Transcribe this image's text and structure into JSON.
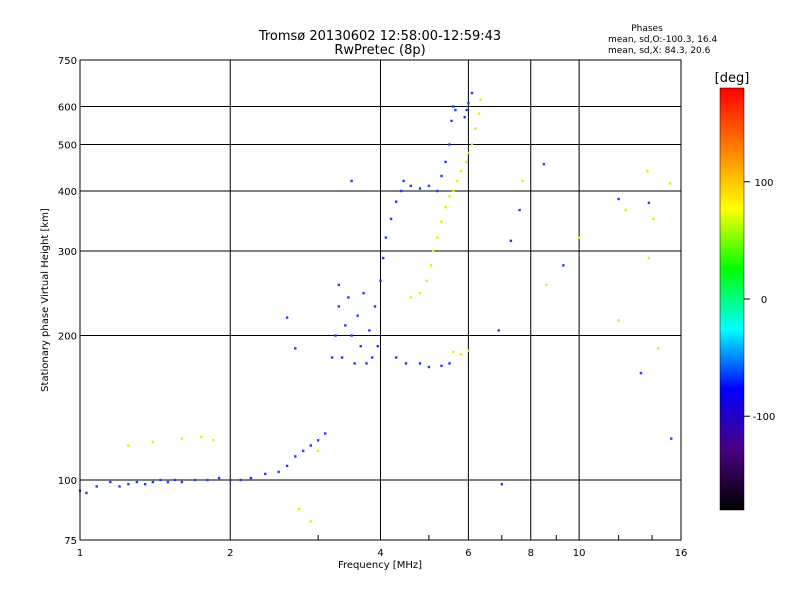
{
  "chart_data": {
    "type": "scatter",
    "title": "Tromsø 20130602 12:58:00-12:59:43",
    "subtitle": "RwPretec (8p)",
    "phases": {
      "heading": "Phases",
      "line_o": "mean, sd,O:-100.3, 16.4",
      "line_x": "mean, sd,X:  84.3, 20.6"
    },
    "xlabel": "Frequency [MHz]",
    "ylabel": "Stationary phase Virtual Height [km]",
    "xscale": "log",
    "yscale": "log",
    "xlim": [
      1,
      16
    ],
    "ylim": [
      75,
      750
    ],
    "x_ticks": [
      1,
      2,
      4,
      6,
      8,
      10,
      16
    ],
    "x_tick_labels": [
      "1",
      "2",
      "4",
      "6",
      "8",
      "10",
      "16"
    ],
    "y_ticks": [
      75,
      100,
      200,
      300,
      400,
      500,
      600,
      750
    ],
    "y_tick_labels": [
      "75",
      "100",
      "200",
      "300",
      "400",
      "500",
      "600",
      "750"
    ],
    "grid": true,
    "colorbar": {
      "label": "deg",
      "range": [
        -180,
        180
      ],
      "ticks": [
        100,
        0,
        -100
      ],
      "tick_labels": [
        "100",
        "0",
        "-100"
      ],
      "colors": [
        "#000000",
        "#4b0082",
        "#0000ff",
        "#00ffff",
        "#00ff00",
        "#ffff00",
        "#ff8000",
        "#ff0000"
      ]
    },
    "series": [
      {
        "polarization": "O",
        "phase_deg": -100,
        "color": "#1e3cff",
        "points": [
          [
            1.0,
            95
          ],
          [
            1.03,
            94
          ],
          [
            1.08,
            97
          ],
          [
            1.15,
            99
          ],
          [
            1.2,
            97
          ],
          [
            1.25,
            98
          ],
          [
            1.3,
            99
          ],
          [
            1.35,
            98
          ],
          [
            1.4,
            99
          ],
          [
            1.45,
            100
          ],
          [
            1.5,
            99
          ],
          [
            1.55,
            100
          ],
          [
            1.6,
            99
          ],
          [
            1.7,
            100
          ],
          [
            1.8,
            100
          ],
          [
            1.9,
            101
          ],
          [
            2.0,
            100
          ],
          [
            2.1,
            100
          ],
          [
            2.2,
            101
          ],
          [
            2.35,
            103
          ],
          [
            2.5,
            104
          ],
          [
            2.6,
            107
          ],
          [
            2.7,
            112
          ],
          [
            2.8,
            115
          ],
          [
            2.9,
            118
          ],
          [
            3.0,
            121
          ],
          [
            3.1,
            125
          ],
          [
            2.6,
            218
          ],
          [
            2.7,
            188
          ],
          [
            3.2,
            180
          ],
          [
            3.25,
            200
          ],
          [
            3.3,
            230
          ],
          [
            3.3,
            255
          ],
          [
            3.35,
            180
          ],
          [
            3.4,
            210
          ],
          [
            3.45,
            240
          ],
          [
            3.5,
            200
          ],
          [
            3.55,
            175
          ],
          [
            3.6,
            220
          ],
          [
            3.65,
            190
          ],
          [
            3.7,
            245
          ],
          [
            3.75,
            175
          ],
          [
            3.8,
            205
          ],
          [
            3.85,
            180
          ],
          [
            3.9,
            230
          ],
          [
            3.95,
            190
          ],
          [
            4.0,
            260
          ],
          [
            4.05,
            290
          ],
          [
            4.1,
            320
          ],
          [
            4.2,
            350
          ],
          [
            4.3,
            380
          ],
          [
            4.4,
            400
          ],
          [
            4.45,
            420
          ],
          [
            4.3,
            180
          ],
          [
            4.5,
            175
          ],
          [
            4.8,
            175
          ],
          [
            5.0,
            172
          ],
          [
            5.3,
            173
          ],
          [
            5.5,
            175
          ],
          [
            4.6,
            410
          ],
          [
            4.8,
            405
          ],
          [
            5.0,
            410
          ],
          [
            5.2,
            400
          ],
          [
            5.3,
            430
          ],
          [
            5.4,
            460
          ],
          [
            5.5,
            500
          ],
          [
            5.55,
            560
          ],
          [
            5.6,
            600
          ],
          [
            5.65,
            590
          ],
          [
            5.9,
            570
          ],
          [
            5.95,
            590
          ],
          [
            6.0,
            610
          ],
          [
            6.1,
            640
          ],
          [
            6.9,
            205
          ],
          [
            7.3,
            315
          ],
          [
            7.0,
            98
          ],
          [
            8.5,
            455
          ],
          [
            7.6,
            365
          ],
          [
            12.0,
            385
          ],
          [
            13.8,
            378
          ],
          [
            15.3,
            122
          ],
          [
            13.3,
            167
          ],
          [
            9.3,
            280
          ],
          [
            3.5,
            420
          ]
        ]
      },
      {
        "polarization": "X",
        "phase_deg": 90,
        "color": "#e6f000",
        "points": [
          [
            1.25,
            118
          ],
          [
            1.4,
            120
          ],
          [
            1.6,
            122
          ],
          [
            1.75,
            123
          ],
          [
            1.85,
            121
          ],
          [
            2.75,
            87
          ],
          [
            2.9,
            82
          ],
          [
            3.0,
            115
          ],
          [
            4.6,
            240
          ],
          [
            4.8,
            245
          ],
          [
            4.95,
            260
          ],
          [
            5.05,
            280
          ],
          [
            5.1,
            300
          ],
          [
            5.2,
            320
          ],
          [
            5.3,
            345
          ],
          [
            5.4,
            370
          ],
          [
            5.5,
            390
          ],
          [
            5.6,
            400
          ],
          [
            5.7,
            420
          ],
          [
            5.8,
            440
          ],
          [
            5.95,
            460
          ],
          [
            6.0,
            480
          ],
          [
            6.1,
            500
          ],
          [
            6.2,
            540
          ],
          [
            6.3,
            580
          ],
          [
            6.35,
            620
          ],
          [
            5.6,
            185
          ],
          [
            5.8,
            183
          ],
          [
            6.0,
            186
          ],
          [
            7.7,
            420
          ],
          [
            8.6,
            255
          ],
          [
            10.0,
            320
          ],
          [
            12.4,
            365
          ],
          [
            14.1,
            350
          ],
          [
            14.4,
            188
          ],
          [
            12.0,
            215
          ],
          [
            13.7,
            440
          ],
          [
            15.2,
            415
          ],
          [
            13.8,
            290
          ]
        ]
      }
    ]
  }
}
